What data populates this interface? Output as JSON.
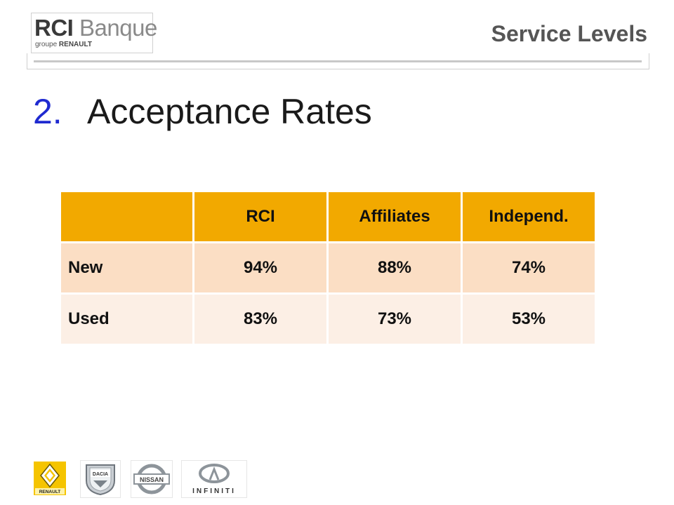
{
  "header": {
    "logo": {
      "brand": "RCI",
      "name": "Banque",
      "sub_prefix": "groupe",
      "sub_brand": "RENAULT"
    },
    "title": "Service Levels"
  },
  "heading": {
    "number": "2.",
    "text": "Acceptance Rates"
  },
  "table": {
    "columns": [
      "",
      "RCI",
      "Affiliates",
      "Independ."
    ],
    "rows": [
      {
        "label": "New",
        "values": [
          "94%",
          "88%",
          "74%"
        ]
      },
      {
        "label": "Used",
        "values": [
          "83%",
          "73%",
          "53%"
        ]
      }
    ]
  },
  "footer": {
    "brands": [
      {
        "name": "renault-logo",
        "text": "RENAULT"
      },
      {
        "name": "dacia-logo",
        "text": "DACIA"
      },
      {
        "name": "nissan-logo",
        "text": "NISSAN"
      },
      {
        "name": "infiniti-logo",
        "text": "INFINITI"
      }
    ]
  },
  "colors": {
    "header_row": "#f2a900",
    "row_new": "#fbdec4",
    "row_used": "#fcefe5",
    "heading_number": "#1f2ad0",
    "header_title": "#555555"
  }
}
